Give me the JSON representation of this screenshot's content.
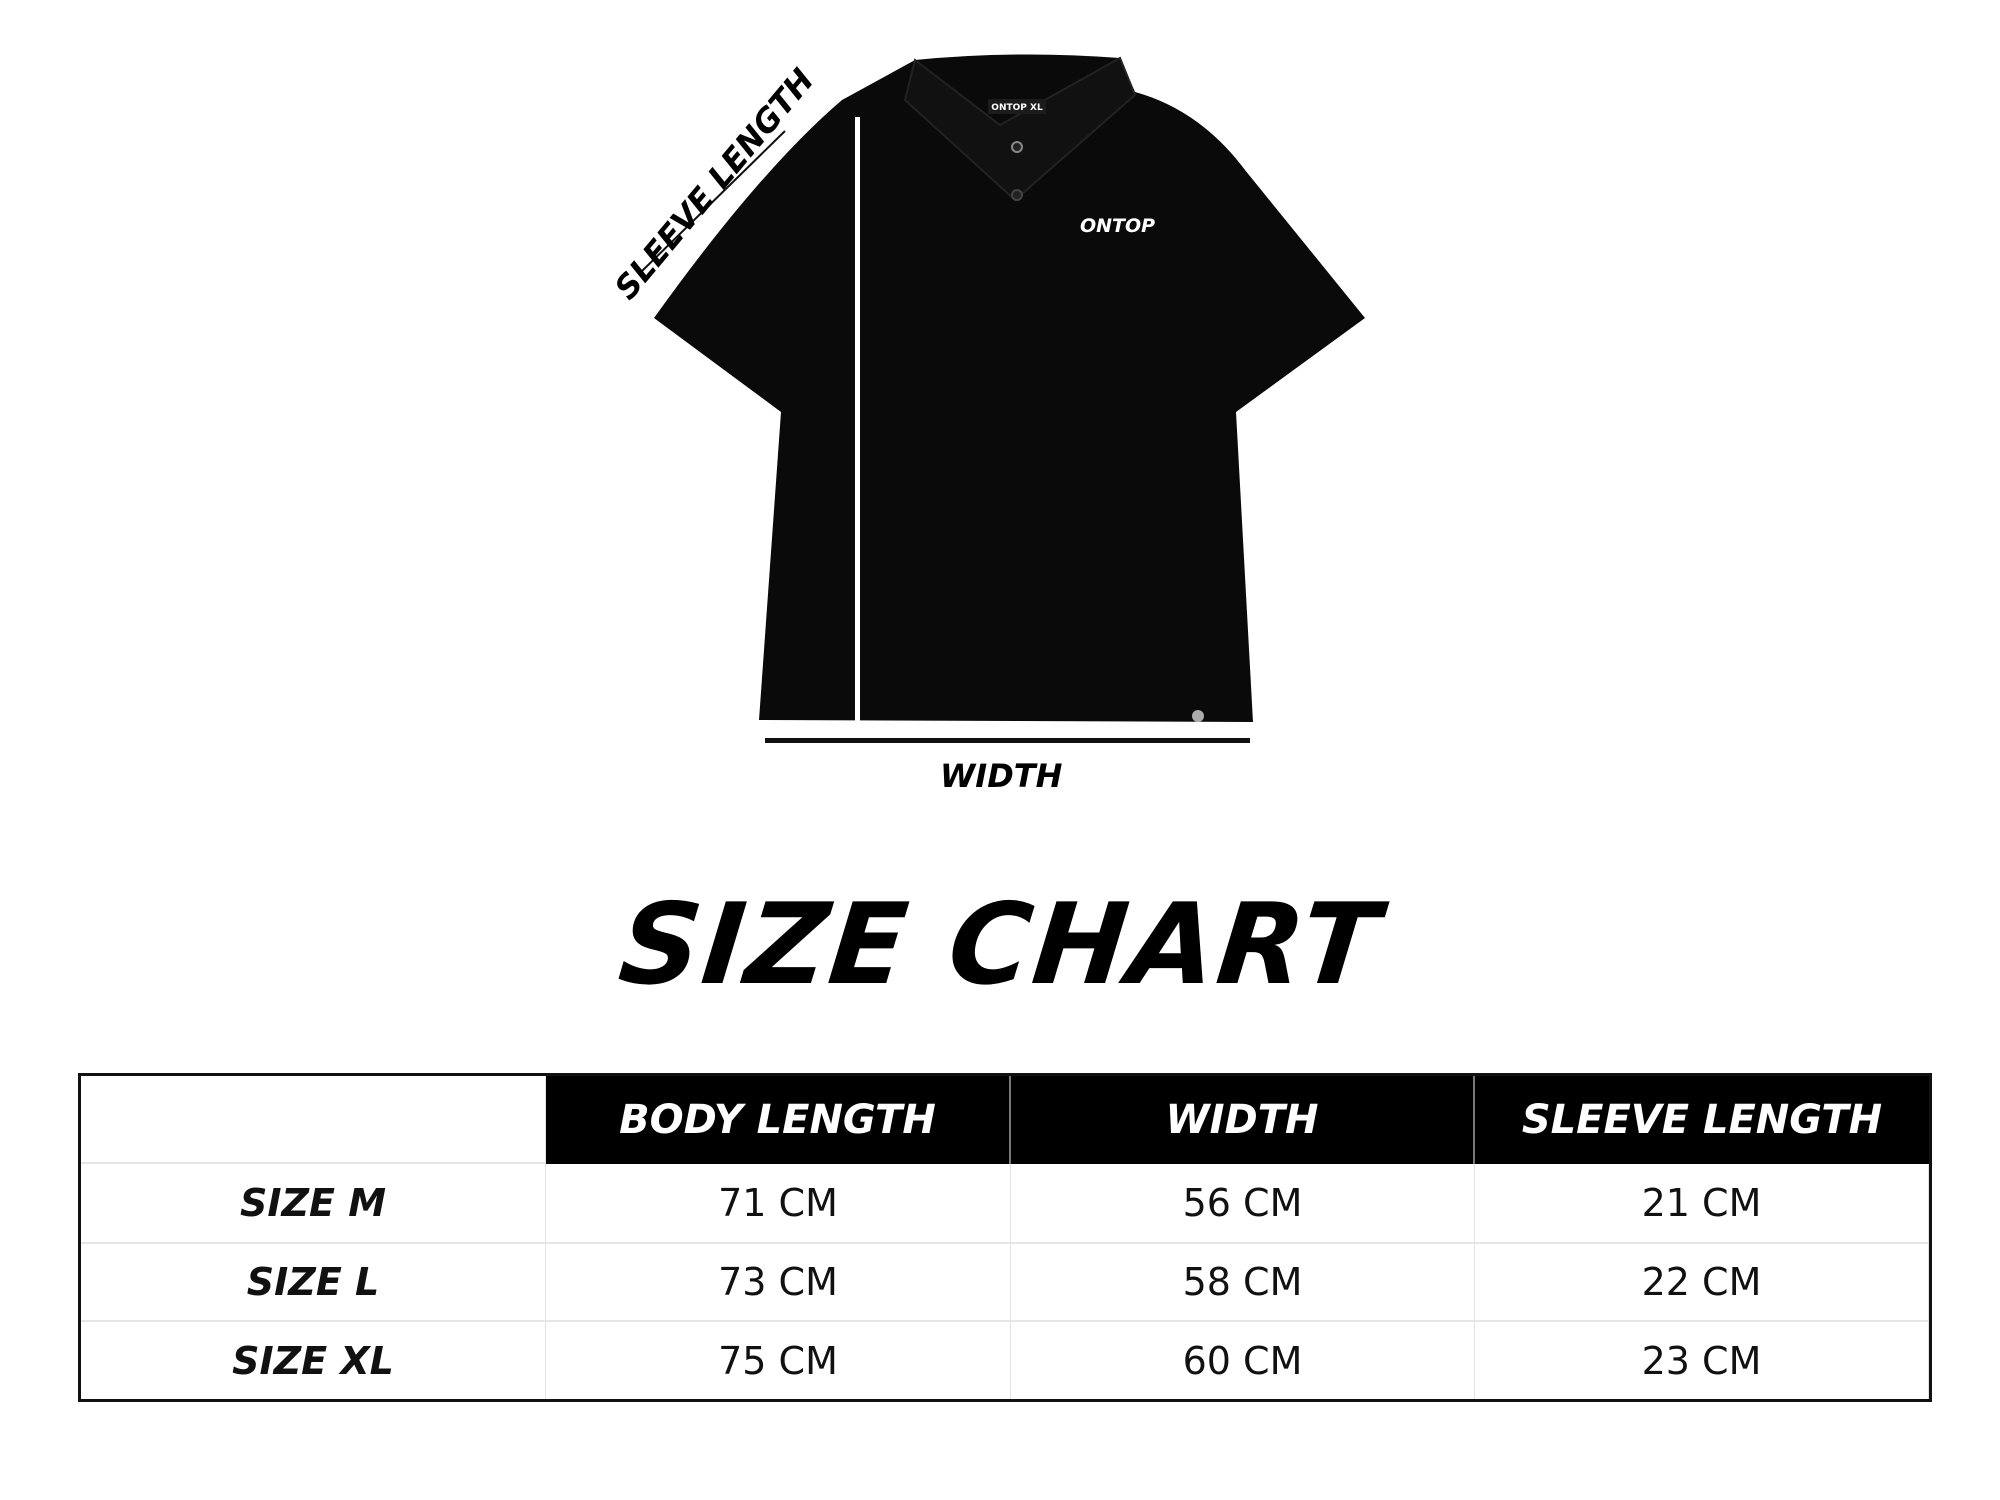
{
  "diagram": {
    "sleeve_label": "SLEEVE LENGTH",
    "width_label": "WIDTH",
    "brand_logo": "ONTOP",
    "tag_text": "ONTOP XL"
  },
  "title": "SIZE CHART",
  "table": {
    "headers": [
      "",
      "BODY LENGTH",
      "WIDTH",
      "SLEEVE LENGTH"
    ],
    "rows": [
      {
        "size": "SIZE M",
        "body_length": "71 CM",
        "width": "56 CM",
        "sleeve_length": "21 CM"
      },
      {
        "size": "SIZE L",
        "body_length": "73 CM",
        "width": "58 CM",
        "sleeve_length": "22 CM"
      },
      {
        "size": "SIZE XL",
        "body_length": "75 CM",
        "width": "60 CM",
        "sleeve_length": "23 CM"
      }
    ]
  }
}
